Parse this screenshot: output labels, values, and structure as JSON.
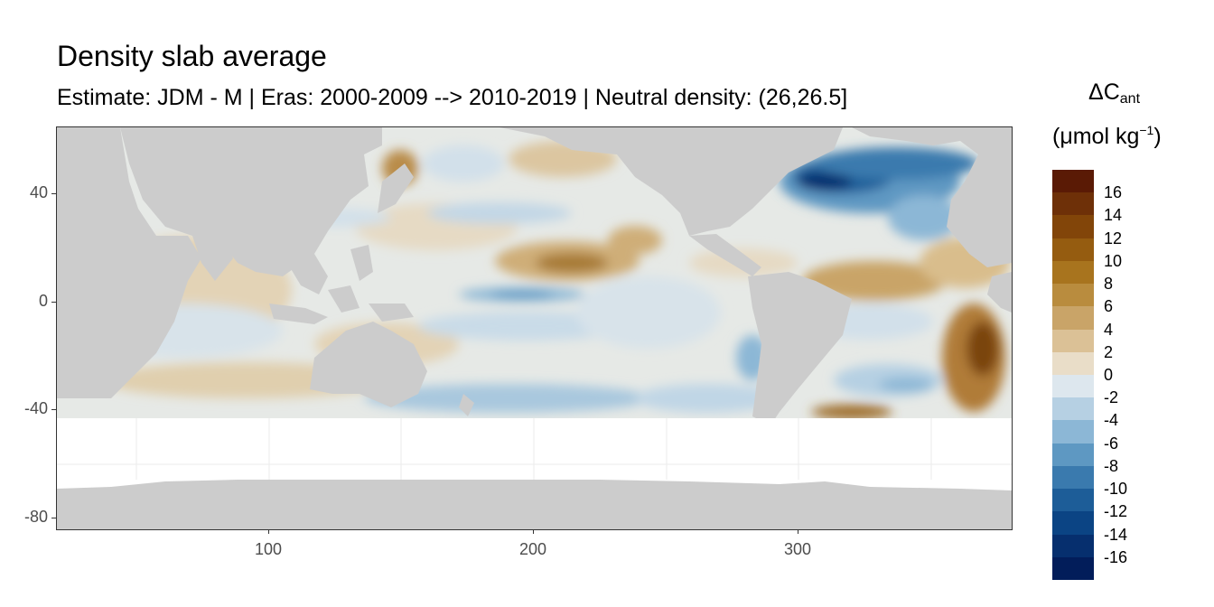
{
  "title": "Density slab average",
  "subtitle": "Estimate: JDM - M | Eras: 2000-2009 --> 2010-2019 | Neutral density: (26,26.5]",
  "map": {
    "x_ticks": [
      "100",
      "200",
      "300"
    ],
    "y_ticks": [
      "40",
      "0",
      "-40",
      "-80"
    ],
    "x_range": [
      20,
      382
    ],
    "y_range": [
      -85,
      65
    ],
    "land_color": "#cccccc",
    "no_data_color": "#ffffff"
  },
  "legend": {
    "title_main": "ΔC",
    "title_sub": "ant",
    "unit_main": "(μmol kg",
    "unit_sup": "−1",
    "unit_close": ")",
    "labels": [
      "16",
      "14",
      "12",
      "10",
      "8",
      "6",
      "4",
      "2",
      "0",
      "-2",
      "-4",
      "-6",
      "-8",
      "-10",
      "-12",
      "-14",
      "-16"
    ],
    "colors": [
      "#5a1a05",
      "#6e3008",
      "#824509",
      "#955c10",
      "#a8741e",
      "#b98c3e",
      "#c9a468",
      "#dbc196",
      "#e9ddc8",
      "#dde7ee",
      "#b6d0e3",
      "#8cb7d6",
      "#5e98c2",
      "#3a7aae",
      "#1d5d98",
      "#0b4484",
      "#062f6e",
      "#021d5a"
    ]
  }
}
